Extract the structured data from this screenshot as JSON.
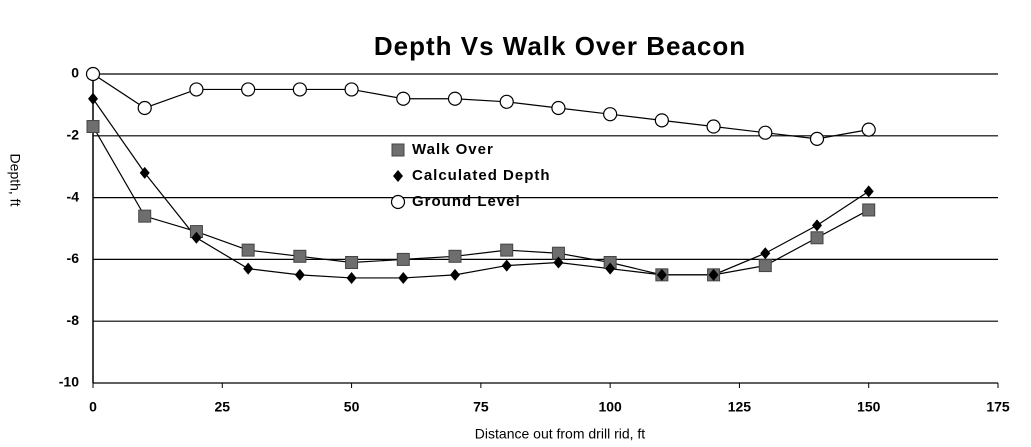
{
  "chart_data": {
    "type": "line",
    "title": "Depth Vs Walk Over Beacon",
    "x_label": "Distance out from drill rid, ft",
    "y_label": "Depth, ft",
    "x": [
      0,
      10,
      20,
      30,
      40,
      50,
      60,
      70,
      80,
      90,
      100,
      110,
      120,
      130,
      140,
      150
    ],
    "series": [
      {
        "name": "Walk Over",
        "color": "#6e6e6e",
        "marker": "square",
        "values": [
          -1.7,
          -4.6,
          -5.1,
          -5.7,
          -5.9,
          -6.1,
          -6.0,
          -5.9,
          -5.7,
          -5.8,
          -6.1,
          -6.5,
          -6.5,
          -6.2,
          -5.3,
          -4.4
        ]
      },
      {
        "name": "Calculated Depth",
        "color": "#000000",
        "marker": "diamond",
        "values": [
          -0.8,
          -3.2,
          -5.3,
          -6.3,
          -6.5,
          -6.6,
          -6.6,
          -6.5,
          -6.2,
          -6.1,
          -6.3,
          -6.5,
          -6.5,
          -5.8,
          -4.9,
          -3.8
        ]
      },
      {
        "name": "Ground Level",
        "color": "#ffffff",
        "marker": "circle",
        "values": [
          0,
          -1.1,
          -0.5,
          -0.5,
          -0.5,
          -0.5,
          -0.8,
          -0.8,
          -0.9,
          -1.1,
          -1.3,
          -1.5,
          -1.7,
          -1.9,
          -2.1,
          -1.8
        ]
      }
    ],
    "xlim": [
      0,
      175
    ],
    "xticks": [
      0,
      25,
      50,
      75,
      100,
      125,
      150,
      175
    ],
    "ylim": [
      -10,
      0
    ],
    "yticks": [
      0,
      -2,
      -4,
      -6,
      -8,
      -10
    ],
    "grid": true
  }
}
